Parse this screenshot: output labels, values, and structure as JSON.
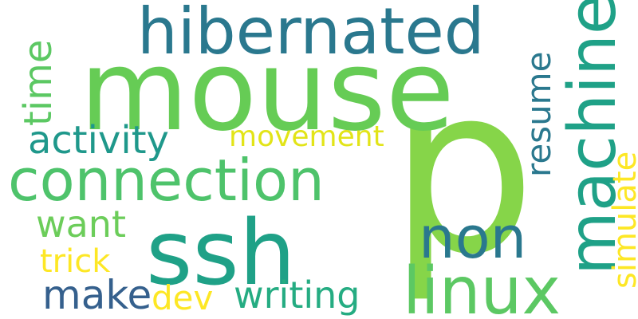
{
  "words": {
    "p": "p",
    "mouse": "mouse",
    "hibernated": "hibernated",
    "connection": "connection",
    "ssh": "ssh",
    "machine": "machine",
    "linux": "linux",
    "non": "non",
    "activity": "activity",
    "resume": "resume",
    "movement": "movement",
    "time": "time",
    "want": "want",
    "simulate": "simulate",
    "trick": "trick",
    "make": "make",
    "dev": "dev",
    "writing": "writing"
  },
  "colors": {
    "background": "#ffffff",
    "p": "#86d549",
    "mouse": "#66cc55",
    "hibernated": "#2a788e",
    "connection": "#4ec36b",
    "ssh": "#1fa187",
    "machine": "#1fa187",
    "linux": "#5cc863",
    "non": "#2a788e",
    "activity": "#1f988b",
    "resume": "#2a788e",
    "movement": "#e2e418",
    "time": "#5cc863",
    "want": "#6ccd5a",
    "simulate": "#fde725",
    "trick": "#fde725",
    "make": "#35608d",
    "dev": "#fde725",
    "writing": "#25ac82"
  }
}
